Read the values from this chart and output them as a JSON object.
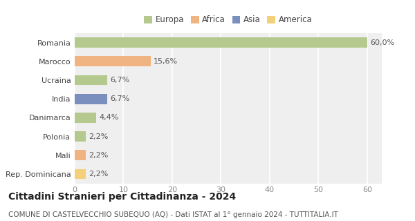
{
  "categories": [
    "Romania",
    "Marocco",
    "Ucraina",
    "India",
    "Danimarca",
    "Polonia",
    "Mali",
    "Rep. Dominicana"
  ],
  "values": [
    60.0,
    15.6,
    6.7,
    6.7,
    4.4,
    2.2,
    2.2,
    2.2
  ],
  "labels": [
    "60,0%",
    "15,6%",
    "6,7%",
    "6,7%",
    "4,4%",
    "2,2%",
    "2,2%",
    "2,2%"
  ],
  "colors": [
    "#b5c98e",
    "#f0b482",
    "#b5c98e",
    "#7b8fbe",
    "#b5c98e",
    "#b5c98e",
    "#f0b482",
    "#f5d07a"
  ],
  "legend_items": [
    {
      "label": "Europa",
      "color": "#b5c98e"
    },
    {
      "label": "Africa",
      "color": "#f0b482"
    },
    {
      "label": "Asia",
      "color": "#7b8fbe"
    },
    {
      "label": "America",
      "color": "#f5d07a"
    }
  ],
  "xlim": [
    0,
    63
  ],
  "xticks": [
    0,
    10,
    20,
    30,
    40,
    50,
    60
  ],
  "title": "Cittadini Stranieri per Cittadinanza - 2024",
  "subtitle": "COMUNE DI CASTELVECCHIO SUBEQUO (AQ) - Dati ISTAT al 1° gennaio 2024 - TUTTITALIA.IT",
  "chart_bg": "#efefef",
  "fig_bg": "#ffffff",
  "grid_color": "#ffffff",
  "title_fontsize": 10,
  "subtitle_fontsize": 7.5,
  "label_fontsize": 8,
  "tick_fontsize": 8,
  "legend_fontsize": 8.5
}
